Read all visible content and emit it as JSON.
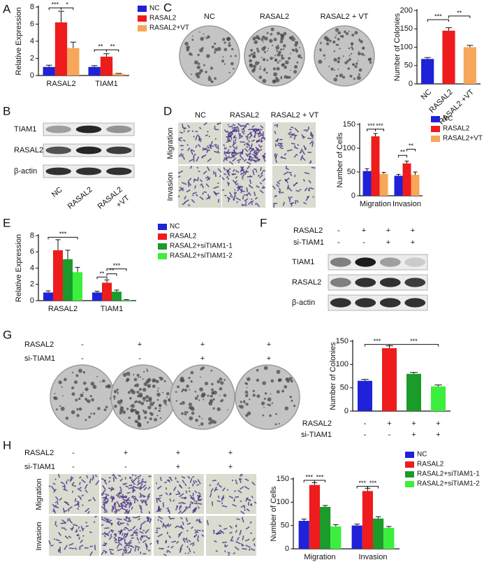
{
  "panel_labels": [
    "A",
    "B",
    "C",
    "D",
    "E",
    "F",
    "G",
    "H"
  ],
  "chart_data": [
    {
      "type": "grouped_bar",
      "y_label": "Relative Expression",
      "categories": [
        "RASAL2",
        "TIAM1"
      ],
      "series": [
        {
          "name": "NC",
          "color": "#1f22d8",
          "values": [
            1.0,
            1.0
          ],
          "errors": [
            0.2,
            0.15
          ]
        },
        {
          "name": "RASAL2",
          "color": "#ee1c1c",
          "values": [
            6.2,
            2.2
          ],
          "errors": [
            1.3,
            0.35
          ]
        },
        {
          "name": "RASAL2+VT",
          "color": "#f7a65a",
          "values": [
            3.2,
            0.2
          ],
          "errors": [
            0.7,
            0.05
          ]
        }
      ],
      "ylim": [
        0,
        8
      ],
      "yticks": [
        0,
        2,
        4,
        6,
        8
      ],
      "annotations": [
        "***",
        "*",
        "**",
        "**"
      ]
    },
    {
      "type": "bar",
      "y_label": "Number of Colonies",
      "categories": [
        "NC",
        "RASAL2",
        "RASAL2 +VT"
      ],
      "values": [
        68,
        145,
        100
      ],
      "errors": [
        4,
        8,
        5
      ],
      "colors": [
        "#1f22d8",
        "#ee1c1c",
        "#f7a65a"
      ],
      "ylim": [
        0,
        200
      ],
      "yticks": [
        0,
        50,
        100,
        150,
        200
      ],
      "annotations": [
        "***",
        "**"
      ]
    },
    {
      "type": "grouped_bar",
      "y_label": "Number of Cells",
      "categories": [
        "Migration",
        "Invasion"
      ],
      "series": [
        {
          "name": "NC",
          "color": "#1f22d8",
          "values": [
            52,
            42
          ],
          "errors": [
            5,
            3
          ]
        },
        {
          "name": "RASAL2",
          "color": "#ee1c1c",
          "values": [
            125,
            68
          ],
          "errors": [
            6,
            5
          ]
        },
        {
          "name": "RASAL2+VT",
          "color": "#f7a65a",
          "values": [
            46,
            44
          ],
          "errors": [
            3,
            6
          ]
        }
      ],
      "ylim": [
        0,
        150
      ],
      "yticks": [
        0,
        50,
        100,
        150
      ],
      "annotations": [
        "***",
        "***",
        "**",
        "**"
      ]
    },
    {
      "type": "grouped_bar",
      "y_label": "Relative Expression",
      "categories": [
        "RASAL2",
        "TIAM1"
      ],
      "series": [
        {
          "name": "NC",
          "color": "#1f22d8",
          "values": [
            1.0,
            1.0
          ],
          "errors": [
            0.2,
            0.15
          ]
        },
        {
          "name": "RASAL2",
          "color": "#ee1c1c",
          "values": [
            6.2,
            2.2
          ],
          "errors": [
            1.3,
            0.35
          ]
        },
        {
          "name": "RASAL2+siTIAM1-1",
          "color": "#1a9b2a",
          "values": [
            5.1,
            1.1
          ],
          "errors": [
            1.1,
            0.2
          ]
        },
        {
          "name": "RASAL2+siTIAM1-2",
          "color": "#3cef3c",
          "values": [
            3.5,
            0.1
          ],
          "errors": [
            0.6,
            0.03
          ]
        }
      ],
      "ylim": [
        0,
        8
      ],
      "yticks": [
        0,
        2,
        4,
        6,
        8
      ],
      "annotations": [
        "***",
        "**",
        "**",
        "***"
      ]
    },
    {
      "type": "bar",
      "y_label": "Number of Colonies",
      "categories": [
        null,
        null,
        null,
        null
      ],
      "values": [
        65,
        135,
        80,
        53
      ],
      "errors": [
        3,
        5,
        3,
        3
      ],
      "colors": [
        "#1f22d8",
        "#ee1c1c",
        "#1a9b2a",
        "#3cef3c"
      ],
      "ylim": [
        0,
        150
      ],
      "yticks": [
        0,
        50,
        100,
        150
      ],
      "annotations": [
        "***",
        "***"
      ],
      "conditions": [
        {
          "label": "RASAL2",
          "values": [
            "-",
            "+",
            "+",
            "+"
          ]
        },
        {
          "label": "si-TIAM1",
          "values": [
            "-",
            "-",
            "+",
            "+"
          ]
        }
      ]
    },
    {
      "type": "grouped_bar",
      "y_label": "Number of Cells",
      "categories": [
        "Migration",
        "Invasion"
      ],
      "series": [
        {
          "name": "NC",
          "color": "#1f22d8",
          "values": [
            60,
            50
          ],
          "errors": [
            4,
            3
          ]
        },
        {
          "name": "RASAL2",
          "color": "#ee1c1c",
          "values": [
            137,
            124
          ],
          "errors": [
            5,
            6
          ]
        },
        {
          "name": "RASAL2+siTIAM1-1",
          "color": "#1a9b2a",
          "values": [
            90,
            65
          ],
          "errors": [
            3,
            4
          ]
        },
        {
          "name": "RASAL2+siTIAM1-2",
          "color": "#3cef3c",
          "values": [
            48,
            45
          ],
          "errors": [
            4,
            3
          ]
        }
      ],
      "ylim": [
        0,
        150
      ],
      "yticks": [
        0,
        50,
        100,
        150
      ],
      "annotations": [
        "***",
        "***",
        "***",
        "***"
      ]
    }
  ],
  "C_images": {
    "columns": [
      "NC",
      "RASAL2",
      "RASAL2 + VT"
    ]
  },
  "B_blot": {
    "rows": [
      "TIAM1",
      "RASAL2",
      "β-actin"
    ],
    "lanes": [
      [
        "NC"
      ],
      [
        "RASAL2"
      ],
      [
        "RASAL2",
        "+VT"
      ]
    ]
  },
  "D_images": {
    "columns": [
      "NC",
      "RASAL2",
      "RASAL2 + VT"
    ],
    "rows": [
      "Migration",
      "Invasion"
    ]
  },
  "F_blot": {
    "conditions": [
      {
        "label": "RASAL2",
        "values": [
          "-",
          "+",
          "+",
          "+"
        ]
      },
      {
        "label": "si-TIAM1",
        "values": [
          "-",
          "-",
          "+",
          "+"
        ]
      }
    ],
    "rows": [
      "TIAM1",
      "RASAL2",
      "β-actin"
    ]
  },
  "G_images": {
    "conditions": [
      {
        "label": "RASAL2",
        "values": [
          "-",
          "+",
          "+",
          "+"
        ]
      },
      {
        "label": "si-TIAM1",
        "values": [
          "-",
          "-",
          "+",
          "+"
        ]
      }
    ]
  },
  "H_images": {
    "conditions": [
      {
        "label": "RASAL2",
        "values": [
          "-",
          "+",
          "+",
          "+"
        ]
      },
      {
        "label": "si-TIAM1",
        "values": [
          "-",
          "-",
          "+",
          "+"
        ]
      }
    ],
    "rows": [
      "Migration",
      "Invasion"
    ]
  }
}
